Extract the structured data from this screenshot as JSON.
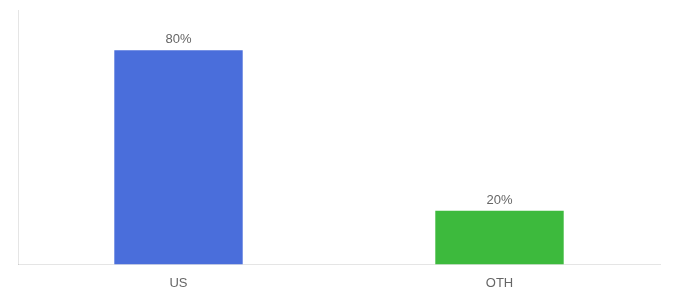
{
  "chart_data": {
    "type": "bar",
    "categories": [
      "US",
      "OTH"
    ],
    "values": [
      80,
      20
    ],
    "value_labels": [
      "80%",
      "20%"
    ],
    "data_labels": true,
    "colors": [
      "#4a6edb",
      "#3dba3d"
    ],
    "ylim": [
      0,
      95
    ],
    "grid": false,
    "tick_labels": "x"
  }
}
